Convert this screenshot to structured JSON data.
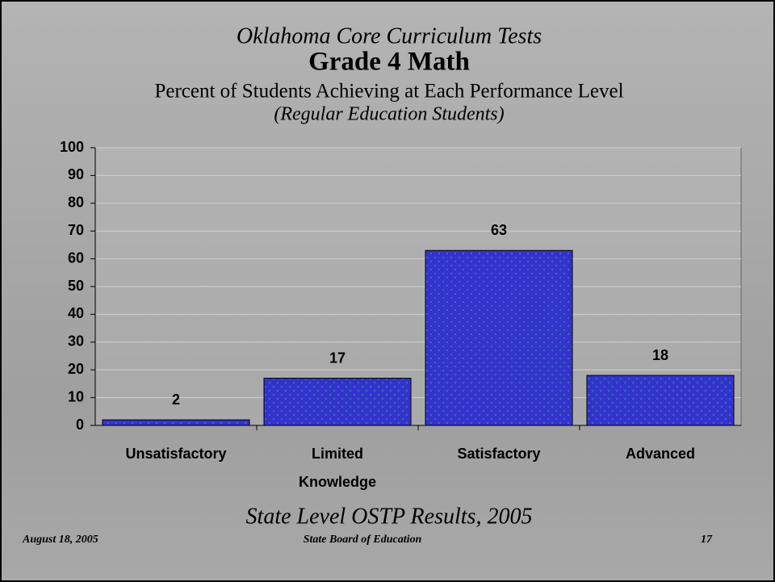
{
  "chart_data": {
    "type": "bar",
    "title": "Oklahoma Core Curriculum Tests",
    "subtitle": "Grade 4 Math",
    "description": "Percent of Students Achieving at Each Performance Level",
    "note": "(Regular Education Students)",
    "categories": [
      "Unsatisfactory",
      "Limited Knowledge",
      "Satisfactory",
      "Advanced"
    ],
    "values": [
      2,
      17,
      63,
      18
    ],
    "color": "#3333cc",
    "ylim": [
      0,
      100
    ],
    "yticks": [
      0,
      10,
      20,
      30,
      40,
      50,
      60,
      70,
      80,
      90,
      100
    ],
    "grid": true,
    "footer": {
      "caption": "State Level OSTP Results, 2005",
      "date": "August 18, 2005",
      "organization": "State Board of Education",
      "page": "17"
    }
  }
}
